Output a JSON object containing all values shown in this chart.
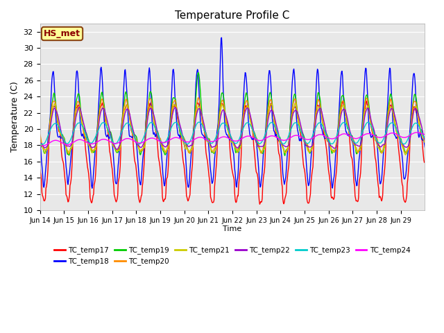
{
  "title": "Temperature Profile C",
  "xlabel": "Time",
  "ylabel": "Temperature (C)",
  "ylim": [
    10,
    33
  ],
  "yticks": [
    10,
    12,
    14,
    16,
    18,
    20,
    22,
    24,
    26,
    28,
    30,
    32
  ],
  "annotation": "HS_met",
  "annotation_color": "#8B0000",
  "annotation_bg": "#FFFF99",
  "annotation_border": "#8B4513",
  "bg_color": "#E8E8E8",
  "series_colors": {
    "TC_temp17": "#FF0000",
    "TC_temp18": "#0000FF",
    "TC_temp19": "#00CC00",
    "TC_temp20": "#FF8C00",
    "TC_temp21": "#CCCC00",
    "TC_temp22": "#9900CC",
    "TC_temp23": "#00CCCC",
    "TC_temp24": "#FF00FF"
  },
  "legend_order": [
    "TC_temp17",
    "TC_temp18",
    "TC_temp19",
    "TC_temp20",
    "TC_temp21",
    "TC_temp22",
    "TC_temp23",
    "TC_temp24"
  ],
  "x_tick_labels": [
    "Jun 14",
    "Jun 15",
    "Jun 16",
    "Jun 17",
    "Jun 18",
    "Jun 19",
    "Jun 20",
    "Jun 21",
    "Jun 22",
    "Jun 23",
    "Jun 24",
    "Jun 25",
    "Jun 26",
    "Jun 27",
    "Jun 28",
    "Jun 29"
  ],
  "n_days": 16,
  "pts_per_day": 48
}
